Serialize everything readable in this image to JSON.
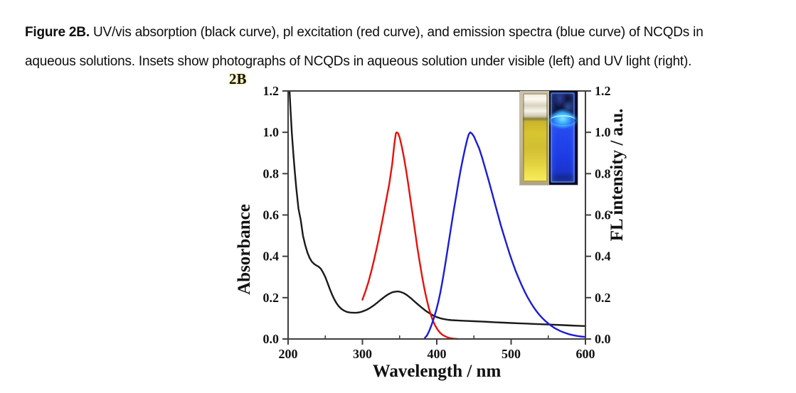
{
  "caption": {
    "prefix": "Figure 2B.",
    "line1": "UV/vis absorption (black curve), pl excitation (red curve), and emission spectra (blue curve) of NCQDs in",
    "line2": "aqueous solutions. Insets show photographs of NCQDs in aqueous solution under visible (left) and UV light (right)."
  },
  "figure_label": "2B",
  "chart_data": {
    "type": "line",
    "title": "",
    "xlabel": "Wavelength / nm",
    "ylabel_left": "Absorbance",
    "ylabel_right": "FL intensity / a.u.",
    "xlim": [
      200,
      600
    ],
    "ylim": [
      0.0,
      1.2
    ],
    "grid": false,
    "frame_color": "#3f3f3f",
    "text_color": "#111111",
    "x_major_ticks": [
      200,
      300,
      400,
      500,
      600
    ],
    "x_tick_labels": [
      "200",
      "300",
      "400",
      "500",
      "600"
    ],
    "x_minor_ticks": [
      250,
      350,
      450,
      550
    ],
    "y_ticks": [
      0.0,
      0.2,
      0.4,
      0.6,
      0.8,
      1.0,
      1.2
    ],
    "y_tick_labels": [
      "0.0",
      "0.2",
      "0.4",
      "0.6",
      "0.8",
      "1.0",
      "1.2"
    ],
    "series": [
      {
        "name": "UV/vis absorption",
        "data_name": "absorption-curve",
        "axis": "left",
        "color": "#1a1a1a",
        "points": [
          [
            202,
            1.2
          ],
          [
            203,
            1.13
          ],
          [
            205,
            1.0
          ],
          [
            207,
            0.9
          ],
          [
            209,
            0.81
          ],
          [
            211,
            0.73
          ],
          [
            214,
            0.63
          ],
          [
            217,
            0.575
          ],
          [
            220,
            0.5
          ],
          [
            223,
            0.455
          ],
          [
            226,
            0.418
          ],
          [
            229,
            0.392
          ],
          [
            232,
            0.374
          ],
          [
            235,
            0.363
          ],
          [
            238,
            0.356
          ],
          [
            241,
            0.35
          ],
          [
            244,
            0.34
          ],
          [
            247,
            0.322
          ],
          [
            250,
            0.3
          ],
          [
            253,
            0.272
          ],
          [
            256,
            0.243
          ],
          [
            259,
            0.216
          ],
          [
            262,
            0.193
          ],
          [
            265,
            0.174
          ],
          [
            268,
            0.159
          ],
          [
            271,
            0.148
          ],
          [
            274,
            0.14
          ],
          [
            277,
            0.134
          ],
          [
            280,
            0.13
          ],
          [
            284,
            0.128
          ],
          [
            288,
            0.127
          ],
          [
            292,
            0.127
          ],
          [
            296,
            0.129
          ],
          [
            300,
            0.133
          ],
          [
            305,
            0.14
          ],
          [
            310,
            0.15
          ],
          [
            315,
            0.162
          ],
          [
            320,
            0.176
          ],
          [
            325,
            0.191
          ],
          [
            330,
            0.205
          ],
          [
            335,
            0.217
          ],
          [
            340,
            0.226
          ],
          [
            344,
            0.229
          ],
          [
            348,
            0.23
          ],
          [
            352,
            0.227
          ],
          [
            356,
            0.221
          ],
          [
            360,
            0.212
          ],
          [
            365,
            0.198
          ],
          [
            370,
            0.182
          ],
          [
            375,
            0.166
          ],
          [
            380,
            0.151
          ],
          [
            385,
            0.137
          ],
          [
            390,
            0.125
          ],
          [
            395,
            0.114
          ],
          [
            400,
            0.106
          ],
          [
            405,
            0.1
          ],
          [
            410,
            0.096
          ],
          [
            415,
            0.093
          ],
          [
            420,
            0.091
          ],
          [
            430,
            0.089
          ],
          [
            440,
            0.0875
          ],
          [
            450,
            0.086
          ],
          [
            460,
            0.0845
          ],
          [
            470,
            0.0825
          ],
          [
            480,
            0.0805
          ],
          [
            490,
            0.079
          ],
          [
            500,
            0.0775
          ],
          [
            510,
            0.076
          ],
          [
            520,
            0.0745
          ],
          [
            530,
            0.073
          ],
          [
            540,
            0.0715
          ],
          [
            550,
            0.07
          ],
          [
            560,
            0.0685
          ],
          [
            570,
            0.067
          ],
          [
            580,
            0.0655
          ],
          [
            590,
            0.064
          ],
          [
            600,
            0.0625
          ]
        ]
      },
      {
        "name": "pl excitation",
        "data_name": "excitation-curve",
        "axis": "right",
        "color": "#e8100c",
        "points": [
          [
            300,
            0.19
          ],
          [
            304,
            0.23
          ],
          [
            308,
            0.275
          ],
          [
            312,
            0.328
          ],
          [
            316,
            0.388
          ],
          [
            320,
            0.452
          ],
          [
            324,
            0.522
          ],
          [
            328,
            0.596
          ],
          [
            332,
            0.672
          ],
          [
            336,
            0.748
          ],
          [
            340,
            0.845
          ],
          [
            343,
            0.945
          ],
          [
            345,
            0.995
          ],
          [
            346,
            1.0
          ],
          [
            348,
            0.995
          ],
          [
            350,
            0.975
          ],
          [
            353,
            0.93
          ],
          [
            356,
            0.875
          ],
          [
            359,
            0.81
          ],
          [
            362,
            0.74
          ],
          [
            365,
            0.665
          ],
          [
            368,
            0.59
          ],
          [
            371,
            0.515
          ],
          [
            374,
            0.44
          ],
          [
            377,
            0.372
          ],
          [
            380,
            0.308
          ],
          [
            383,
            0.25
          ],
          [
            386,
            0.198
          ],
          [
            389,
            0.154
          ],
          [
            392,
            0.117
          ],
          [
            395,
            0.087
          ],
          [
            398,
            0.064
          ],
          [
            401,
            0.046
          ],
          [
            404,
            0.032
          ],
          [
            407,
            0.022
          ],
          [
            410,
            0.015
          ],
          [
            413,
            0.01
          ],
          [
            416,
            0.006
          ],
          [
            419,
            0.0035
          ],
          [
            422,
            0.002
          ],
          [
            425,
            0.001
          ],
          [
            428,
            0.0
          ]
        ]
      },
      {
        "name": "emission",
        "data_name": "emission-curve",
        "axis": "right",
        "color": "#1b1bd8",
        "points": [
          [
            384,
            0.005
          ],
          [
            387,
            0.018
          ],
          [
            390,
            0.04
          ],
          [
            393,
            0.068
          ],
          [
            396,
            0.1
          ],
          [
            399,
            0.136
          ],
          [
            402,
            0.178
          ],
          [
            405,
            0.228
          ],
          [
            408,
            0.288
          ],
          [
            411,
            0.352
          ],
          [
            414,
            0.42
          ],
          [
            417,
            0.49
          ],
          [
            420,
            0.558
          ],
          [
            423,
            0.625
          ],
          [
            426,
            0.69
          ],
          [
            429,
            0.755
          ],
          [
            432,
            0.815
          ],
          [
            435,
            0.87
          ],
          [
            438,
            0.92
          ],
          [
            441,
            0.965
          ],
          [
            443,
            0.99
          ],
          [
            445,
            1.0
          ],
          [
            447,
            0.995
          ],
          [
            450,
            0.98
          ],
          [
            453,
            0.955
          ],
          [
            457,
            0.922
          ],
          [
            461,
            0.878
          ],
          [
            465,
            0.828
          ],
          [
            470,
            0.765
          ],
          [
            474,
            0.712
          ],
          [
            478,
            0.658
          ],
          [
            482,
            0.605
          ],
          [
            486,
            0.552
          ],
          [
            490,
            0.505
          ],
          [
            494,
            0.458
          ],
          [
            498,
            0.412
          ],
          [
            502,
            0.37
          ],
          [
            506,
            0.33
          ],
          [
            510,
            0.295
          ],
          [
            514,
            0.262
          ],
          [
            518,
            0.231
          ],
          [
            522,
            0.203
          ],
          [
            526,
            0.178
          ],
          [
            530,
            0.155
          ],
          [
            534,
            0.135
          ],
          [
            538,
            0.117
          ],
          [
            542,
            0.101
          ],
          [
            546,
            0.087
          ],
          [
            550,
            0.075
          ],
          [
            554,
            0.064
          ],
          [
            558,
            0.054
          ],
          [
            562,
            0.046
          ],
          [
            566,
            0.039
          ],
          [
            570,
            0.033
          ],
          [
            574,
            0.028
          ],
          [
            578,
            0.023
          ],
          [
            582,
            0.0195
          ],
          [
            586,
            0.0165
          ],
          [
            590,
            0.014
          ],
          [
            594,
            0.012
          ],
          [
            598,
            0.0105
          ],
          [
            600,
            0.01
          ]
        ]
      }
    ]
  },
  "inset": {
    "description": "photographs of NCQDs in aqueous solution under visible (left) and UV light (right)",
    "colors": {
      "visible_bg": "#cdc4aa",
      "visible_liquid_color": "#d8c52f",
      "uv_bg": "#0b0b26",
      "uv_glow_color": "#2446ee",
      "uv_meniscus_color": "#7fe8ff"
    }
  }
}
